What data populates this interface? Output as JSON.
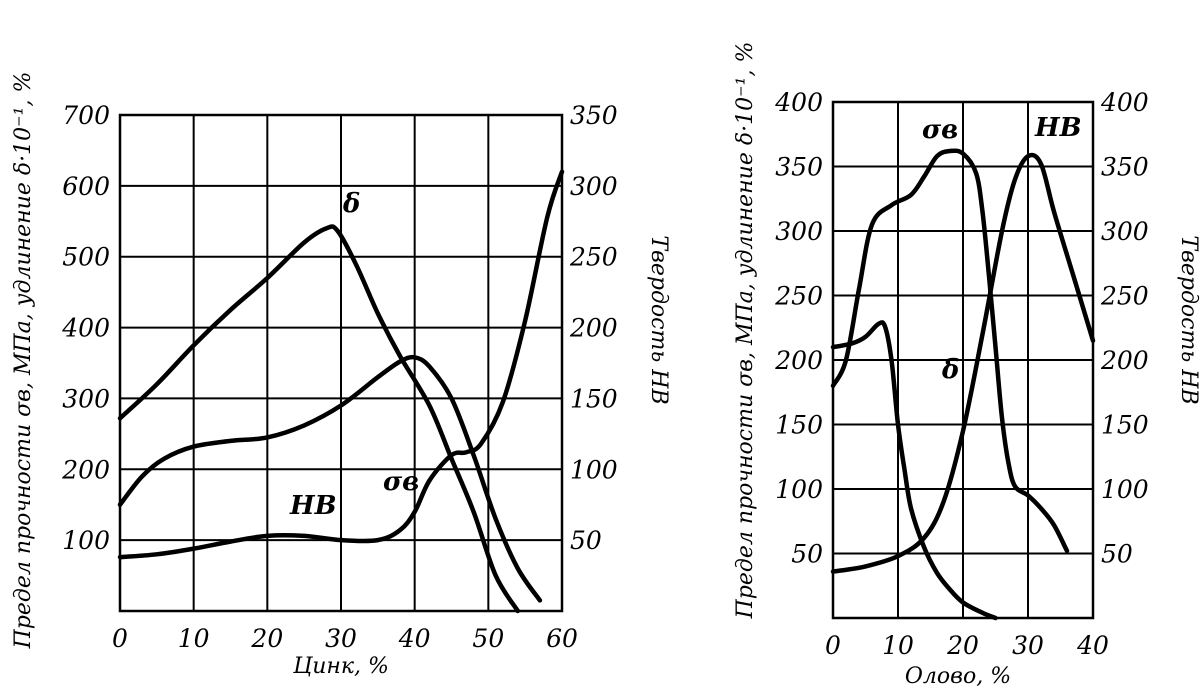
{
  "chart_data": [
    {
      "type": "line",
      "xlabel": "Цинк, %",
      "ylabel_left": "Предел прочности σв, МПа, удлинение δ·10⁻¹, %",
      "ylabel_right": "Твердость НВ",
      "xlim": [
        0,
        60
      ],
      "ylim_left": [
        0,
        700
      ],
      "ylim_right": [
        0,
        350
      ],
      "x_ticks": [
        "0",
        "10",
        "20",
        "30",
        "40",
        "50",
        "60"
      ],
      "y_left_ticks": [
        "100",
        "200",
        "300",
        "400",
        "500",
        "600",
        "700"
      ],
      "y_right_ticks": [
        "50",
        "100",
        "150",
        "200",
        "250",
        "300",
        "350"
      ],
      "grid": true,
      "series": [
        {
          "name": "δ",
          "axis": "left",
          "points": [
            [
              0,
              272
            ],
            [
              5,
              320
            ],
            [
              10,
              375
            ],
            [
              15,
              425
            ],
            [
              20,
              470
            ],
            [
              25,
              520
            ],
            [
              28,
              540
            ],
            [
              29.5,
              537
            ],
            [
              32,
              490
            ],
            [
              35,
              420
            ],
            [
              38,
              360
            ],
            [
              42,
              290
            ],
            [
              45,
              215
            ],
            [
              48,
              140
            ],
            [
              51,
              50
            ],
            [
              54,
              0
            ]
          ]
        },
        {
          "name": "σв",
          "axis": "left",
          "points": [
            [
              0,
              150
            ],
            [
              3,
              190
            ],
            [
              6,
              215
            ],
            [
              10,
              232
            ],
            [
              15,
              240
            ],
            [
              20,
              245
            ],
            [
              25,
              262
            ],
            [
              30,
              290
            ],
            [
              35,
              330
            ],
            [
              38,
              352
            ],
            [
              40,
              358
            ],
            [
              42,
              345
            ],
            [
              45,
              300
            ],
            [
              48,
              220
            ],
            [
              51,
              130
            ],
            [
              54,
              60
            ],
            [
              57,
              15
            ]
          ]
        },
        {
          "name": "НВ",
          "axis": "right",
          "points": [
            [
              0,
              38
            ],
            [
              5,
              40
            ],
            [
              10,
              44
            ],
            [
              15,
              49
            ],
            [
              20,
              53
            ],
            [
              25,
              53
            ],
            [
              30,
              50
            ],
            [
              35,
              50
            ],
            [
              38,
              57
            ],
            [
              40,
              70
            ],
            [
              42,
              92
            ],
            [
              45,
              110
            ],
            [
              47,
              112
            ],
            [
              49,
              118
            ],
            [
              52,
              148
            ],
            [
              55,
              205
            ],
            [
              58,
              278
            ],
            [
              60,
              310
            ]
          ]
        }
      ]
    },
    {
      "type": "line",
      "xlabel": "Олово, %",
      "ylabel_left": "Предел прочности σв, МПа, удлинение δ·10⁻¹, %",
      "ylabel_right": "Твердость НВ",
      "xlim": [
        0,
        40
      ],
      "ylim_left": [
        0,
        400
      ],
      "ylim_right": [
        0,
        400
      ],
      "x_ticks": [
        "0",
        "10",
        "20",
        "30",
        "40"
      ],
      "y_left_ticks": [
        "50",
        "100",
        "150",
        "200",
        "250",
        "300",
        "350",
        "400"
      ],
      "y_right_ticks": [
        "50",
        "100",
        "150",
        "200",
        "250",
        "300",
        "350",
        "400"
      ],
      "grid": true,
      "series": [
        {
          "name": "σв",
          "axis": "left",
          "points": [
            [
              0,
              180
            ],
            [
              2,
              200
            ],
            [
              4,
              255
            ],
            [
              6,
              305
            ],
            [
              9,
              320
            ],
            [
              12,
              328
            ],
            [
              14,
              342
            ],
            [
              16,
              358
            ],
            [
              18,
              362
            ],
            [
              20,
              360
            ],
            [
              22,
              345
            ],
            [
              23,
              315
            ],
            [
              24,
              265
            ],
            [
              25,
              210
            ],
            [
              26,
              155
            ],
            [
              27,
              120
            ],
            [
              28,
              102
            ],
            [
              30,
              95
            ],
            [
              32,
              85
            ],
            [
              34,
              72
            ],
            [
              36,
              52
            ]
          ]
        },
        {
          "name": "δ",
          "axis": "left",
          "points": [
            [
              0,
              210
            ],
            [
              3,
              213
            ],
            [
              5,
              218
            ],
            [
              7,
              228
            ],
            [
              8,
              226
            ],
            [
              9,
              200
            ],
            [
              10,
              150
            ],
            [
              11,
              115
            ],
            [
              12,
              85
            ],
            [
              14,
              55
            ],
            [
              16,
              35
            ],
            [
              18,
              22
            ],
            [
              20,
              12
            ],
            [
              23,
              4
            ],
            [
              25,
              0
            ]
          ]
        },
        {
          "name": "НВ",
          "axis": "right",
          "points": [
            [
              0,
              36
            ],
            [
              5,
              40
            ],
            [
              10,
              48
            ],
            [
              14,
              62
            ],
            [
              17,
              90
            ],
            [
              20,
              145
            ],
            [
              23,
              220
            ],
            [
              26,
              300
            ],
            [
              28,
              340
            ],
            [
              30,
              358
            ],
            [
              32,
              352
            ],
            [
              34,
              315
            ],
            [
              37,
              265
            ],
            [
              40,
              215
            ]
          ]
        }
      ]
    }
  ]
}
